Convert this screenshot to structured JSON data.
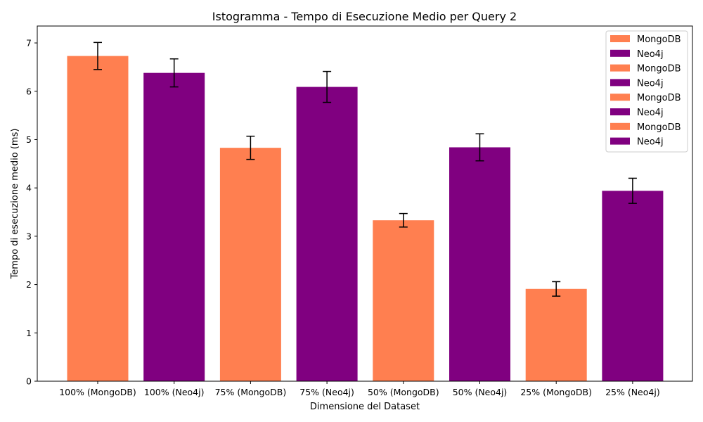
{
  "chart_data": {
    "type": "bar",
    "title": "Istogramma - Tempo di Esecuzione Medio per Query 2",
    "xlabel": "Dimensione del Dataset",
    "ylabel": "Tempo di esecuzione medio (ms)",
    "ylim": [
      0,
      7.35
    ],
    "yticks": [
      0,
      1,
      2,
      3,
      4,
      5,
      6,
      7
    ],
    "grid": false,
    "legend_position": "top-right",
    "categories": [
      "100% (MongoDB)",
      "100% (Neo4j)",
      "75% (MongoDB)",
      "75% (Neo4j)",
      "50% (MongoDB)",
      "50% (Neo4j)",
      "25% (MongoDB)",
      "25% (Neo4j)"
    ],
    "values": [
      6.73,
      6.38,
      4.83,
      6.09,
      3.33,
      4.84,
      1.91,
      3.94
    ],
    "errors": [
      0.28,
      0.29,
      0.24,
      0.32,
      0.14,
      0.28,
      0.15,
      0.26
    ],
    "bar_colors": [
      "#ff7f50",
      "#800080",
      "#ff7f50",
      "#800080",
      "#ff7f50",
      "#800080",
      "#ff7f50",
      "#800080"
    ],
    "legend": [
      {
        "label": "MongoDB",
        "color": "#ff7f50"
      },
      {
        "label": "Neo4j",
        "color": "#800080"
      },
      {
        "label": "MongoDB",
        "color": "#ff7f50"
      },
      {
        "label": "Neo4j",
        "color": "#800080"
      },
      {
        "label": "MongoDB",
        "color": "#ff7f50"
      },
      {
        "label": "Neo4j",
        "color": "#800080"
      },
      {
        "label": "MongoDB",
        "color": "#ff7f50"
      },
      {
        "label": "Neo4j",
        "color": "#800080"
      }
    ]
  }
}
